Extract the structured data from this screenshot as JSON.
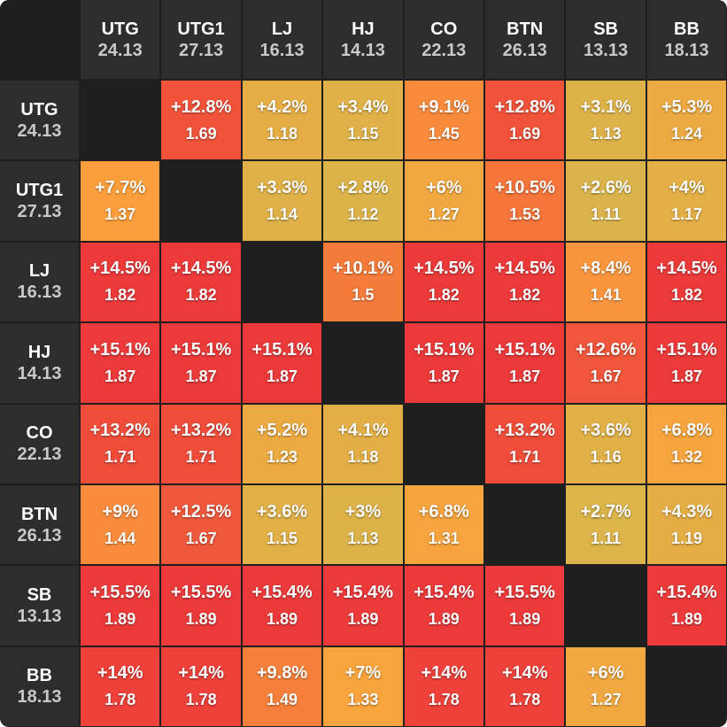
{
  "chart_data": {
    "type": "heatmap",
    "players": [
      {
        "name": "UTG",
        "stack": "24.13"
      },
      {
        "name": "UTG1",
        "stack": "27.13"
      },
      {
        "name": "LJ",
        "stack": "16.13"
      },
      {
        "name": "HJ",
        "stack": "14.13"
      },
      {
        "name": "CO",
        "stack": "22.13"
      },
      {
        "name": "BTN",
        "stack": "26.13"
      },
      {
        "name": "SB",
        "stack": "13.13"
      },
      {
        "name": "BB",
        "stack": "18.13"
      }
    ],
    "cells": [
      [
        null,
        [
          "+12.8%",
          "1.69"
        ],
        [
          "+4.2%",
          "1.18"
        ],
        [
          "+3.4%",
          "1.15"
        ],
        [
          "+9.1%",
          "1.45"
        ],
        [
          "+12.8%",
          "1.69"
        ],
        [
          "+3.1%",
          "1.13"
        ],
        [
          "+5.3%",
          "1.24"
        ]
      ],
      [
        [
          "+7.7%",
          "1.37"
        ],
        null,
        [
          "+3.3%",
          "1.14"
        ],
        [
          "+2.8%",
          "1.12"
        ],
        [
          "+6%",
          "1.27"
        ],
        [
          "+10.5%",
          "1.53"
        ],
        [
          "+2.6%",
          "1.11"
        ],
        [
          "+4%",
          "1.17"
        ]
      ],
      [
        [
          "+14.5%",
          "1.82"
        ],
        [
          "+14.5%",
          "1.82"
        ],
        null,
        [
          "+10.1%",
          "1.5"
        ],
        [
          "+14.5%",
          "1.82"
        ],
        [
          "+14.5%",
          "1.82"
        ],
        [
          "+8.4%",
          "1.41"
        ],
        [
          "+14.5%",
          "1.82"
        ]
      ],
      [
        [
          "+15.1%",
          "1.87"
        ],
        [
          "+15.1%",
          "1.87"
        ],
        [
          "+15.1%",
          "1.87"
        ],
        null,
        [
          "+15.1%",
          "1.87"
        ],
        [
          "+15.1%",
          "1.87"
        ],
        [
          "+12.6%",
          "1.67"
        ],
        [
          "+15.1%",
          "1.87"
        ]
      ],
      [
        [
          "+13.2%",
          "1.71"
        ],
        [
          "+13.2%",
          "1.71"
        ],
        [
          "+5.2%",
          "1.23"
        ],
        [
          "+4.1%",
          "1.18"
        ],
        null,
        [
          "+13.2%",
          "1.71"
        ],
        [
          "+3.6%",
          "1.16"
        ],
        [
          "+6.8%",
          "1.32"
        ]
      ],
      [
        [
          "+9%",
          "1.44"
        ],
        [
          "+12.5%",
          "1.67"
        ],
        [
          "+3.6%",
          "1.15"
        ],
        [
          "+3%",
          "1.13"
        ],
        [
          "+6.8%",
          "1.31"
        ],
        null,
        [
          "+2.7%",
          "1.11"
        ],
        [
          "+4.3%",
          "1.19"
        ]
      ],
      [
        [
          "+15.5%",
          "1.89"
        ],
        [
          "+15.5%",
          "1.89"
        ],
        [
          "+15.4%",
          "1.89"
        ],
        [
          "+15.4%",
          "1.89"
        ],
        [
          "+15.4%",
          "1.89"
        ],
        [
          "+15.5%",
          "1.89"
        ],
        null,
        [
          "+15.4%",
          "1.89"
        ]
      ],
      [
        [
          "+14%",
          "1.78"
        ],
        [
          "+14%",
          "1.78"
        ],
        [
          "+9.8%",
          "1.49"
        ],
        [
          "+7%",
          "1.33"
        ],
        [
          "+14%",
          "1.78"
        ],
        [
          "+14%",
          "1.78"
        ],
        [
          "+6%",
          "1.27"
        ],
        null
      ]
    ],
    "colors": {
      "low": "#dab44a",
      "mid": "#fba23c",
      "high": "#ec3a3a",
      "empty": "#1f1f1f",
      "header": "#2d2d2d"
    }
  }
}
